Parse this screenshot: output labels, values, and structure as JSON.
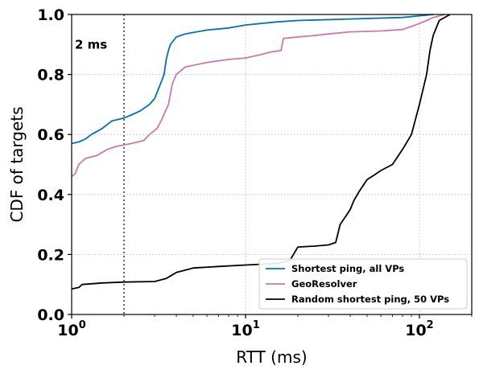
{
  "chart_data": {
    "type": "line",
    "xscale": "log",
    "xlabel": "RTT (ms)",
    "ylabel": "CDF of targets",
    "xlim": [
      1,
      200
    ],
    "ylim": [
      0,
      1
    ],
    "x_ticks": [
      {
        "value": 1,
        "base": "10",
        "exp": "0"
      },
      {
        "value": 10,
        "base": "10",
        "exp": "1"
      },
      {
        "value": 100,
        "base": "10",
        "exp": "2"
      }
    ],
    "y_ticks": [
      "0.0",
      "0.2",
      "0.4",
      "0.6",
      "0.8",
      "1.0"
    ],
    "grid": true,
    "legend_position": "lower-right",
    "annotation": {
      "text": "2 ms",
      "x": 2
    },
    "series": [
      {
        "name": "Shortest ping, all VPs",
        "color": "#0072b2",
        "points": [
          [
            1,
            0.57
          ],
          [
            1.1,
            0.575
          ],
          [
            1.2,
            0.585
          ],
          [
            1.3,
            0.6
          ],
          [
            1.5,
            0.62
          ],
          [
            1.7,
            0.645
          ],
          [
            2.0,
            0.655
          ],
          [
            2.2,
            0.665
          ],
          [
            2.5,
            0.68
          ],
          [
            2.8,
            0.7
          ],
          [
            3.0,
            0.72
          ],
          [
            3.2,
            0.76
          ],
          [
            3.4,
            0.8
          ],
          [
            3.5,
            0.85
          ],
          [
            3.6,
            0.88
          ],
          [
            3.7,
            0.9
          ],
          [
            4.0,
            0.925
          ],
          [
            4.5,
            0.935
          ],
          [
            5,
            0.94
          ],
          [
            6,
            0.948
          ],
          [
            8,
            0.955
          ],
          [
            10,
            0.965
          ],
          [
            15,
            0.975
          ],
          [
            20,
            0.98
          ],
          [
            40,
            0.985
          ],
          [
            80,
            0.99
          ],
          [
            120,
            1.0
          ]
        ]
      },
      {
        "name": "GeoResolver",
        "color": "#cc79a7",
        "points": [
          [
            1,
            0.46
          ],
          [
            1.05,
            0.47
          ],
          [
            1.1,
            0.5
          ],
          [
            1.2,
            0.52
          ],
          [
            1.4,
            0.53
          ],
          [
            1.6,
            0.55
          ],
          [
            1.8,
            0.56
          ],
          [
            2.2,
            0.57
          ],
          [
            2.6,
            0.58
          ],
          [
            2.8,
            0.6
          ],
          [
            3.1,
            0.62
          ],
          [
            3.3,
            0.65
          ],
          [
            3.6,
            0.7
          ],
          [
            3.8,
            0.77
          ],
          [
            4.0,
            0.8
          ],
          [
            4.5,
            0.825
          ],
          [
            6,
            0.84
          ],
          [
            8,
            0.85
          ],
          [
            10,
            0.855
          ],
          [
            12,
            0.865
          ],
          [
            14,
            0.875
          ],
          [
            16,
            0.88
          ],
          [
            16.5,
            0.92
          ],
          [
            20,
            0.925
          ],
          [
            25,
            0.93
          ],
          [
            30,
            0.935
          ],
          [
            40,
            0.942
          ],
          [
            60,
            0.945
          ],
          [
            80,
            0.95
          ],
          [
            90,
            0.96
          ],
          [
            100,
            0.97
          ],
          [
            110,
            0.98
          ],
          [
            120,
            0.99
          ],
          [
            140,
            1.0
          ]
        ]
      },
      {
        "name": "Random shortest ping, 50 VPs",
        "color": "#000000",
        "points": [
          [
            1,
            0.085
          ],
          [
            1.1,
            0.09
          ],
          [
            1.15,
            0.1
          ],
          [
            1.5,
            0.105
          ],
          [
            2,
            0.108
          ],
          [
            3,
            0.11
          ],
          [
            3.5,
            0.12
          ],
          [
            4,
            0.14
          ],
          [
            5,
            0.155
          ],
          [
            7,
            0.16
          ],
          [
            10,
            0.165
          ],
          [
            15,
            0.17
          ],
          [
            18,
            0.18
          ],
          [
            20,
            0.225
          ],
          [
            25,
            0.228
          ],
          [
            30,
            0.232
          ],
          [
            33,
            0.24
          ],
          [
            35,
            0.3
          ],
          [
            38,
            0.33
          ],
          [
            40,
            0.35
          ],
          [
            42,
            0.38
          ],
          [
            45,
            0.41
          ],
          [
            50,
            0.45
          ],
          [
            55,
            0.465
          ],
          [
            60,
            0.48
          ],
          [
            70,
            0.5
          ],
          [
            80,
            0.55
          ],
          [
            90,
            0.6
          ],
          [
            100,
            0.7
          ],
          [
            110,
            0.8
          ],
          [
            115,
            0.88
          ],
          [
            120,
            0.93
          ],
          [
            130,
            0.98
          ],
          [
            150,
            1.0
          ]
        ]
      }
    ]
  }
}
